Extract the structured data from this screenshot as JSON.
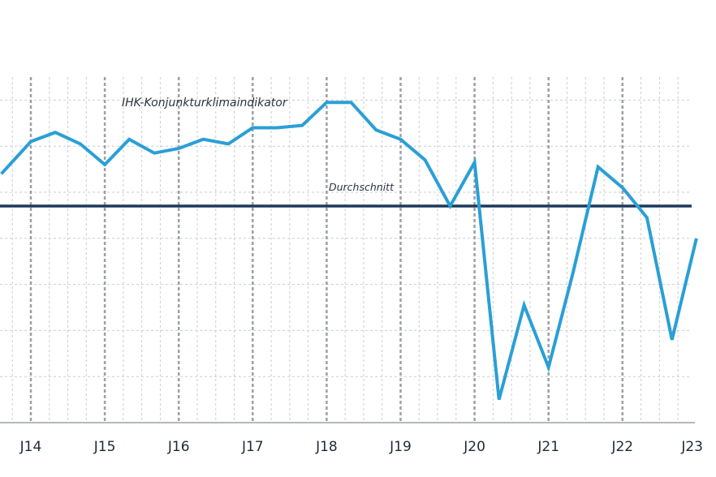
{
  "chart_data": {
    "type": "line",
    "x_ticks": [
      "J14",
      "J15",
      "J16",
      "J17",
      "J18",
      "J19",
      "J20",
      "J21",
      "J22",
      "J23"
    ],
    "ylim": [
      60,
      135
    ],
    "grid": true,
    "series": [
      {
        "name": "IHK-Konjunkturklimaindikator",
        "color": "#2a9fd6",
        "x": [
          2013.6,
          2014.0,
          2014.33,
          2014.67,
          2015.0,
          2015.33,
          2015.67,
          2016.0,
          2016.33,
          2016.67,
          2017.0,
          2017.33,
          2017.67,
          2018.0,
          2018.33,
          2018.67,
          2019.0,
          2019.33,
          2019.67,
          2020.0,
          2020.33,
          2020.67,
          2021.0,
          2021.33,
          2021.67,
          2022.0,
          2022.33,
          2022.67,
          2023.0
        ],
        "values": [
          114,
          121,
          123,
          120.5,
          116,
          121.5,
          118.5,
          119.5,
          121.5,
          120.5,
          124,
          124,
          124.5,
          129.5,
          129.5,
          123.5,
          121.5,
          117,
          107,
          116.5,
          65,
          85.5,
          72,
          92.5,
          115.5,
          111,
          104.5,
          78,
          100
        ]
      }
    ],
    "reference_line": {
      "name": "Durchschnitt",
      "value": 107,
      "color": "#1b3a5c"
    }
  }
}
